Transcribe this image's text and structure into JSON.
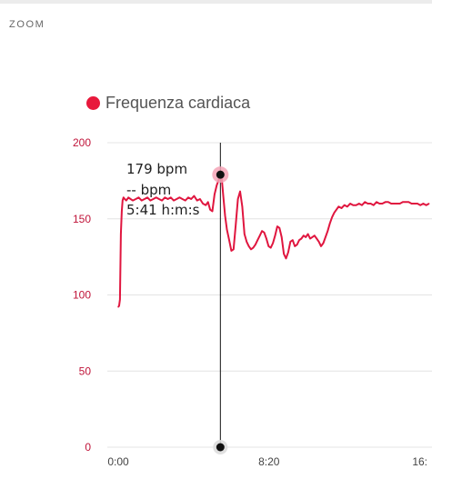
{
  "header": {
    "zoom_label": "ZOOM"
  },
  "legend": {
    "label": "Frequenza cardiaca",
    "color": "#e8193c"
  },
  "tooltip": {
    "hr": "179 bpm",
    "second": "-- bpm",
    "time": "5:41 h:m:s"
  },
  "colors": {
    "series": "#e0163f",
    "tick_y": "#c0153a",
    "grid": "#e4e4e4",
    "cursor": "#111111",
    "marker_halo": "#f5a3b6"
  },
  "chart_data": {
    "type": "line",
    "title": "",
    "xlabel": "",
    "ylabel": "",
    "x_unit": "minutes",
    "xlim": [
      0,
      21.5
    ],
    "ylim": [
      0,
      200
    ],
    "yticks": [
      0,
      50,
      100,
      150,
      200
    ],
    "ytick_labels": [
      "0",
      "50",
      "100",
      "150",
      "200"
    ],
    "xticks": [
      0,
      10.33,
      20.67
    ],
    "xtick_labels": [
      "0:00",
      "8:20",
      "16:"
    ],
    "cursor_x": 7.0,
    "cursor_y": 179,
    "series": [
      {
        "name": "Frequenza cardiaca",
        "x": [
          0.0,
          0.06,
          0.12,
          0.18,
          0.24,
          0.3,
          0.36,
          0.45,
          0.55,
          0.7,
          0.85,
          1.0,
          1.2,
          1.4,
          1.6,
          1.8,
          2.0,
          2.2,
          2.4,
          2.6,
          2.8,
          3.0,
          3.2,
          3.4,
          3.6,
          3.8,
          4.0,
          4.2,
          4.4,
          4.6,
          4.8,
          5.0,
          5.2,
          5.4,
          5.6,
          5.8,
          6.0,
          6.15,
          6.3,
          6.45,
          6.6,
          6.75,
          6.9,
          7.0,
          7.1,
          7.2,
          7.32,
          7.45,
          7.6,
          7.75,
          7.9,
          8.05,
          8.2,
          8.35,
          8.5,
          8.65,
          8.8,
          8.95,
          9.1,
          9.25,
          9.4,
          9.55,
          9.7,
          9.85,
          10.0,
          10.15,
          10.3,
          10.45,
          10.6,
          10.75,
          10.9,
          11.05,
          11.2,
          11.35,
          11.5,
          11.65,
          11.8,
          11.95,
          12.1,
          12.25,
          12.4,
          12.55,
          12.7,
          12.85,
          13.0,
          13.15,
          13.3,
          13.45,
          13.6,
          13.75,
          13.9,
          14.05,
          14.2,
          14.35,
          14.5,
          14.65,
          14.8,
          14.95,
          15.1,
          15.3,
          15.5,
          15.7,
          15.9,
          16.1,
          16.3,
          16.5,
          16.7,
          16.9,
          17.1,
          17.3,
          17.5,
          17.7,
          17.9,
          18.1,
          18.3,
          18.5,
          18.7,
          18.9,
          19.1,
          19.3,
          19.5,
          19.7,
          19.9,
          20.1,
          20.3,
          20.5,
          20.7,
          20.9,
          21.1,
          21.3
        ],
        "values": [
          92,
          93,
          97,
          140,
          155,
          162,
          164,
          163,
          162,
          164,
          163,
          162,
          163,
          164,
          162,
          163,
          164,
          162,
          163,
          164,
          163,
          162,
          164,
          163,
          164,
          162,
          163,
          164,
          163,
          162,
          164,
          163,
          165,
          162,
          163,
          160,
          159,
          161,
          156,
          155,
          166,
          172,
          176,
          179,
          176,
          165,
          152,
          143,
          136,
          129,
          130,
          146,
          163,
          168,
          158,
          140,
          135,
          132,
          130,
          131,
          133,
          136,
          139,
          142,
          141,
          137,
          132,
          131,
          134,
          139,
          145,
          144,
          138,
          127,
          124,
          128,
          135,
          136,
          132,
          133,
          136,
          137,
          139,
          138,
          140,
          137,
          138,
          139,
          137,
          135,
          132,
          134,
          138,
          142,
          147,
          151,
          154,
          156,
          158,
          157,
          159,
          158,
          160,
          159,
          159,
          160,
          159,
          161,
          160,
          160,
          159,
          161,
          160,
          160,
          161,
          161,
          160,
          160,
          160,
          160,
          161,
          161,
          161,
          160,
          160,
          160,
          159,
          160,
          159,
          160
        ]
      }
    ]
  }
}
